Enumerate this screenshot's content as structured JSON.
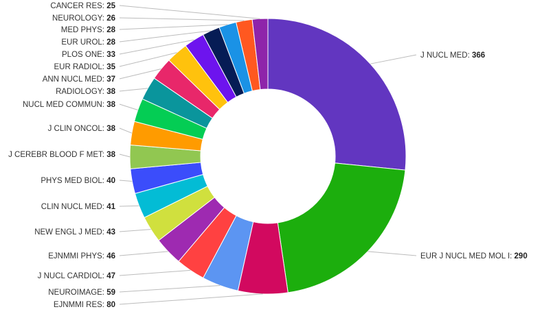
{
  "chart_data": {
    "type": "pie",
    "variant": "donut",
    "title": "",
    "legend": "none",
    "slices": [
      {
        "label": "J NUCL MED",
        "value": 366,
        "color": "#6236c0"
      },
      {
        "label": "EUR J NUCL MED MOL I",
        "value": 290,
        "color": "#1cae0d"
      },
      {
        "label": "EJNMMI RES",
        "value": 80,
        "color": "#d2095f"
      },
      {
        "label": "NEUROIMAGE",
        "value": 59,
        "color": "#5c95f2"
      },
      {
        "label": "J NUCL CARDIOL",
        "value": 47,
        "color": "#ff4141"
      },
      {
        "label": "EJNMMI PHYS",
        "value": 46,
        "color": "#9e2ab1"
      },
      {
        "label": "NEW ENGL J MED",
        "value": 43,
        "color": "#d0e03e"
      },
      {
        "label": "CLIN NUCL MED",
        "value": 41,
        "color": "#03bcd5"
      },
      {
        "label": "PHYS MED BIOL",
        "value": 40,
        "color": "#3b4dfb"
      },
      {
        "label": "J CEREBR BLOOD F MET",
        "value": 38,
        "color": "#91c751"
      },
      {
        "label": "J CLIN ONCOL",
        "value": 38,
        "color": "#ff9b00"
      },
      {
        "label": "NUCL MED COMMUN",
        "value": 38,
        "color": "#04cd54"
      },
      {
        "label": "RADIOLOGY",
        "value": 38,
        "color": "#0a959c"
      },
      {
        "label": "ANN NUCL MED",
        "value": 37,
        "color": "#e8276a"
      },
      {
        "label": "EUR RADIOL",
        "value": 35,
        "color": "#ffc20d"
      },
      {
        "label": "PLOS ONE",
        "value": 33,
        "color": "#6d14ee"
      },
      {
        "label": "EUR UROL",
        "value": 28,
        "color": "#061c55"
      },
      {
        "label": "MED PHYS",
        "value": 28,
        "color": "#1a92e6"
      },
      {
        "label": "NEUROLOGY",
        "value": 26,
        "color": "#ff5820"
      },
      {
        "label": "CANCER RES",
        "value": 25,
        "color": "#8e24aa"
      }
    ]
  }
}
